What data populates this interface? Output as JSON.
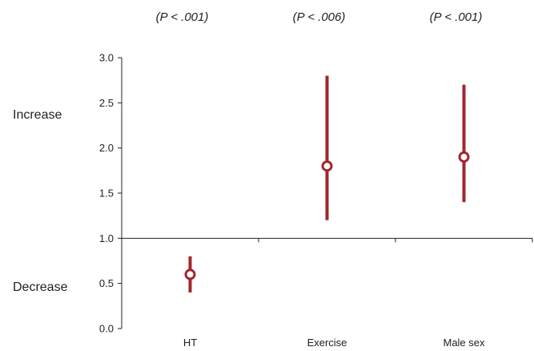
{
  "chart_data": {
    "type": "scatter",
    "categories": [
      "HT",
      "Exercise",
      "Male sex"
    ],
    "estimates": [
      0.6,
      1.8,
      1.9
    ],
    "ci_lower": [
      0.4,
      1.2,
      1.4
    ],
    "ci_upper": [
      0.8,
      2.8,
      2.7
    ],
    "p_values": [
      "(P < .001)",
      "(P < .006)",
      "(P < .001)"
    ],
    "reference_line": 1.0,
    "ylim": [
      0,
      3
    ],
    "yticks": [
      "0.0",
      "0.5",
      "1.0",
      "1.5",
      "2.0",
      "2.5",
      "3.0"
    ],
    "side_labels": {
      "increase": "Increase",
      "decrease": "Decrease"
    },
    "grid": false,
    "colors": {
      "marker": "#a0272d",
      "axis": "#222222"
    }
  }
}
